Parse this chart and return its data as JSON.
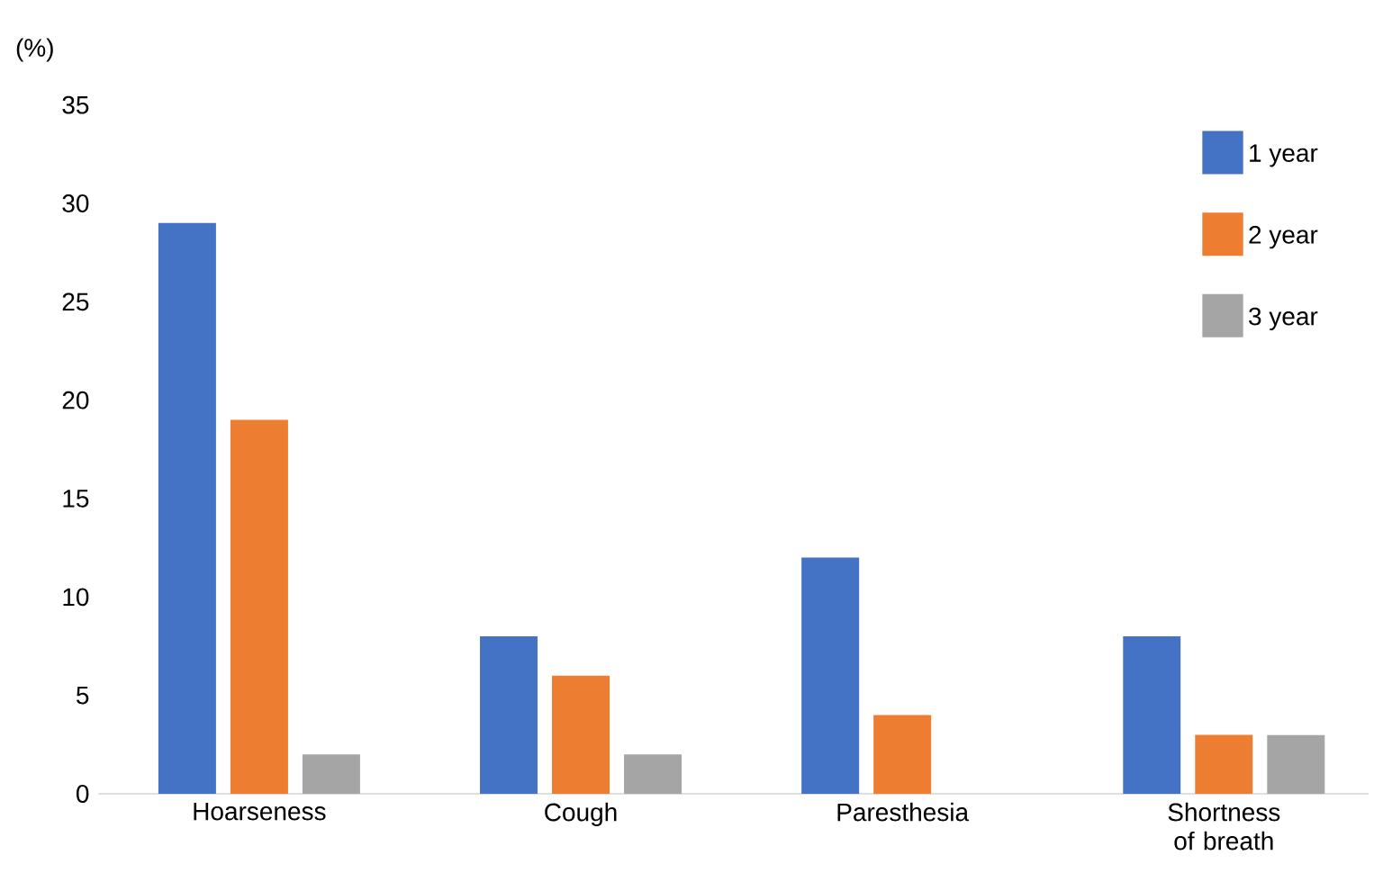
{
  "chart_data": {
    "type": "bar",
    "ylabel": "(%)",
    "categories": [
      "Hoarseness",
      "Cough",
      "Paresthesia",
      "Shortness of breath"
    ],
    "series": [
      {
        "name": "1 year",
        "color": "#4472c4",
        "values": [
          29,
          8,
          12,
          8
        ]
      },
      {
        "name": "2 year",
        "color": "#ed7d31",
        "values": [
          19,
          6,
          4,
          3
        ]
      },
      {
        "name": "3 year",
        "color": "#a5a5a5",
        "values": [
          2,
          2,
          0,
          3
        ]
      }
    ],
    "ylim": [
      0,
      35
    ],
    "yticks": [
      0,
      5,
      10,
      15,
      20,
      25,
      30,
      35
    ],
    "grid": false,
    "legend": "top right"
  }
}
